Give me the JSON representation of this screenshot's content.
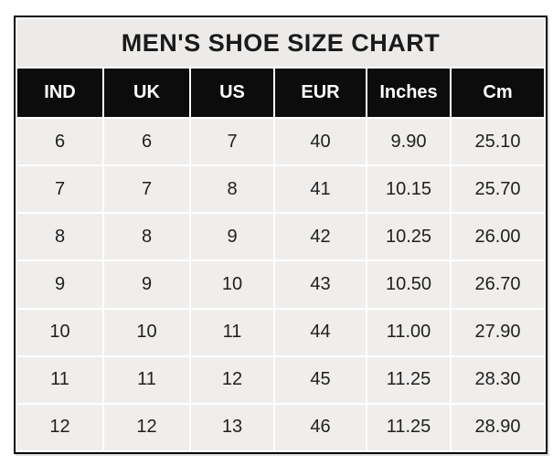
{
  "title": "MEN'S SHOE SIZE CHART",
  "colors": {
    "page_bg": "#ffffff",
    "title_bg": "#edebe9",
    "title_text": "#1a1a1a",
    "header_bg": "#0c0c0c",
    "header_text": "#ffffff",
    "cell_bg": "#f0eeec",
    "cell_text": "#1f1f1f",
    "outer_border": "#000000",
    "grid_gap": "#ffffff"
  },
  "chart_data": {
    "type": "table",
    "title": "MEN'S SHOE SIZE CHART",
    "columns": [
      "IND",
      "UK",
      "US",
      "EUR",
      "Inches",
      "Cm"
    ],
    "rows": [
      [
        "6",
        "6",
        "7",
        "40",
        "9.90",
        "25.10"
      ],
      [
        "7",
        "7",
        "8",
        "41",
        "10.15",
        "25.70"
      ],
      [
        "8",
        "8",
        "9",
        "42",
        "10.25",
        "26.00"
      ],
      [
        "9",
        "9",
        "10",
        "43",
        "10.50",
        "26.70"
      ],
      [
        "10",
        "10",
        "11",
        "44",
        "11.00",
        "27.90"
      ],
      [
        "11",
        "11",
        "12",
        "45",
        "11.25",
        "28.30"
      ],
      [
        "12",
        "12",
        "13",
        "46",
        "11.25",
        "28.90"
      ]
    ]
  }
}
